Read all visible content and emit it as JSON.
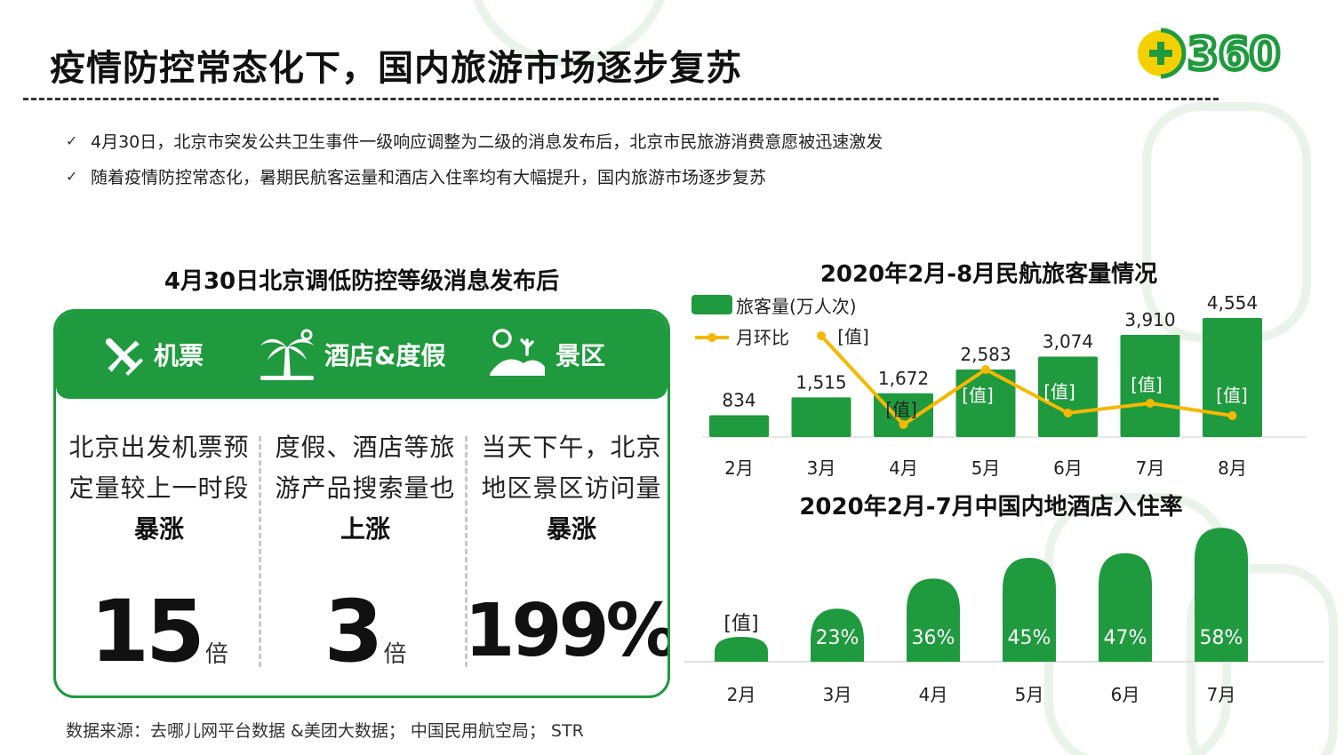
{
  "page": {
    "title": "疫情防控常态化下，国内旅游市场逐步复苏",
    "logo_text": "360",
    "bullets": [
      "4月30日，北京市突发公共卫生事件一级响应调整为二级的消息发布后，北京市民旅游消费意愿被迅速激发",
      "随着疫情防控常态化，暑期民航客运量和酒店入住率均有大幅提升，国内旅游市场逐步复苏"
    ],
    "check_icon": "✓",
    "source": "数据来源：去哪儿网平台数据 &美团大数据； 中国民用航空局； STR"
  },
  "panel": {
    "heading": "4月30日北京调低防控等级消息发布后",
    "categories": [
      {
        "label": "机票",
        "icon": "airplane-icon"
      },
      {
        "label": "酒店&度假",
        "icon": "palm-tree-icon"
      },
      {
        "label": "景区",
        "icon": "scenic-landscape-icon"
      }
    ],
    "columns": [
      {
        "line1": "北京出发机票预",
        "line2": "定量较上一时段",
        "emphasis": "暴涨",
        "value": "15",
        "unit": "倍"
      },
      {
        "line1": "度假、酒店等旅",
        "line2": "游产品搜索量也",
        "emphasis": "上涨",
        "value": "3",
        "unit": "倍"
      },
      {
        "line1": "当天下午，北京",
        "line2": "地区景区访问量",
        "emphasis": "暴涨",
        "value": "199%",
        "unit": ""
      }
    ]
  },
  "colors": {
    "brand_green": "#1f9a3e",
    "line_yellow": "#f5b800",
    "logo_yellow": "#f5d000"
  },
  "chart_data": [
    {
      "type": "bar",
      "title": "2020年2月-8月民航旅客量情况",
      "categories": [
        "2月",
        "3月",
        "4月",
        "5月",
        "6月",
        "7月",
        "8月"
      ],
      "series": [
        {
          "name": "旅客量(万人次)",
          "type": "bar",
          "values": [
            834,
            1515,
            1672,
            2583,
            3074,
            3910,
            4554
          ],
          "labels": [
            "834",
            "1,515",
            "1,672",
            "2,583",
            "3,074",
            "3,910",
            "4,554"
          ]
        },
        {
          "name": "月环比",
          "type": "line",
          "values": [
            null,
            null,
            null,
            null,
            null,
            null,
            null
          ],
          "labels": [
            "",
            "[值]",
            "[值]",
            "[值]",
            "[值]",
            "[值]",
            "[值]"
          ]
        }
      ],
      "legend": "top-left"
    },
    {
      "type": "bar",
      "title": "2020年2月-7月中国内地酒店入住率",
      "categories": [
        "2月",
        "3月",
        "4月",
        "5月",
        "6月",
        "7月"
      ],
      "values": [
        null,
        23,
        36,
        45,
        47,
        58
      ],
      "labels": [
        "[值]",
        "23%",
        "36%",
        "45%",
        "47%",
        "58%"
      ],
      "unit": "%"
    }
  ]
}
